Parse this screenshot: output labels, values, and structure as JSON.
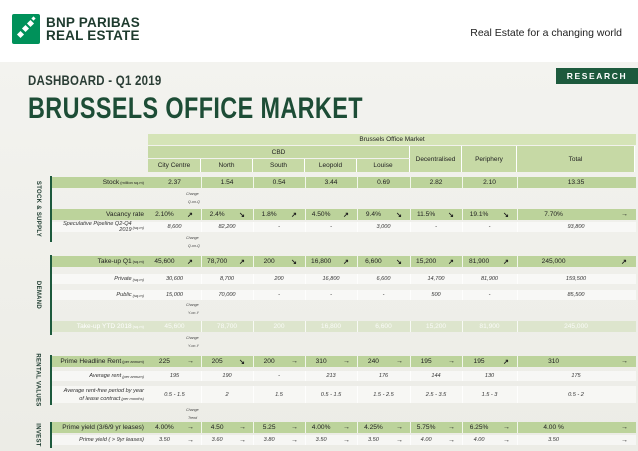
{
  "header": {
    "logo_line1": "BNP PARIBAS",
    "logo_line2": "REAL ESTATE",
    "tagline": "Real Estate for a changing world",
    "logo_icon": "bnp-stars-logo"
  },
  "banner": {
    "research_label": "RESEARCH",
    "subtitle": "DASHBOARD  - Q1 2019",
    "title": "BRUSSELS OFFICE MARKET"
  },
  "table": {
    "title": "Brussels Office Market",
    "cbd_label": "CBD",
    "columns": [
      "City Centre",
      "North",
      "South",
      "Leopold",
      "Louise",
      "Decentralised",
      "Periphery",
      "Total"
    ],
    "change_label": "Change",
    "qoq_label": "Q-on-Q",
    "yoy_label": "Y-on-Y",
    "trend_label": "Trend",
    "sections": {
      "stock": "STOCK & SUPPLY",
      "demand": "DEMAND",
      "rental": "RENTAL VALUES",
      "invest": "INVEST"
    },
    "rows": {
      "stock": {
        "label": "Stock",
        "unit": "(million sq.m)",
        "values": [
          "2.37",
          "1.54",
          "0.54",
          "3.44",
          "0.69",
          "2.82",
          "2.10",
          "13.35"
        ]
      },
      "vacancy": {
        "label": "Vacancy rate",
        "values": [
          "2.10%",
          "2.4%",
          "1.8%",
          "4.50%",
          "9.4%",
          "11.5%",
          "19.1%",
          "7.70%"
        ],
        "arrows": [
          "↗",
          "↘",
          "↗",
          "↗",
          "↘",
          "↘",
          "↘",
          "→"
        ]
      },
      "pipeline": {
        "label": "Speculative Pipeline  Q2-Q4 2019",
        "unit": "(sq.m)",
        "values": [
          "8,600",
          "82,200",
          "-",
          "-",
          "3,000",
          "-",
          "-",
          "93,800"
        ]
      },
      "takeup": {
        "label": "Take-up Q1",
        "unit": "(sq.m)",
        "values": [
          "45,600",
          "78,700",
          "200",
          "16,800",
          "6,600",
          "15,200",
          "81,900",
          "245,000"
        ],
        "arrows": [
          "↗",
          "↗",
          "↘",
          "↗",
          "↘",
          "↗",
          "↗",
          "↗"
        ]
      },
      "private": {
        "label": "Private",
        "unit": "(sq.m)",
        "values": [
          "30,600",
          "8,700",
          "200",
          "16,800",
          "6,600",
          "14,700",
          "81,900",
          "159,500"
        ]
      },
      "public": {
        "label": "Public",
        "unit": "(sq.m)",
        "values": [
          "15,000",
          "70,000",
          "-",
          "-",
          "-",
          "500",
          "-",
          "85,500"
        ]
      },
      "takeup_ytd": {
        "label": "Take-up YTD 2018",
        "unit": "(sq.m)",
        "values": [
          "45,600",
          "78,700",
          "200",
          "16,800",
          "6,600",
          "15,200",
          "81,900",
          "245,000"
        ]
      },
      "prime_rent": {
        "label": "Prime Headline Rent",
        "unit": "(per annum)",
        "values": [
          "225",
          "205",
          "200",
          "310",
          "240",
          "195",
          "195",
          "310"
        ],
        "arrows": [
          "→",
          "↘",
          "→",
          "→",
          "→",
          "→",
          "↗",
          "→"
        ]
      },
      "avg_rent": {
        "label": "Average rent",
        "unit": "(per annum)",
        "values": [
          "195",
          "190",
          "-",
          "213",
          "176",
          "144",
          "130",
          "175"
        ]
      },
      "rent_free": {
        "label1": "Average rent-free period by  year",
        "label2": "of lease contract",
        "unit": "(per months)",
        "values": [
          "0.5 - 1.5",
          "2",
          "1.5",
          "0.5 - 1.5",
          "1.5 - 2.5",
          "2.5 - 3.5",
          "1.5 - 3",
          "0.5 - 2"
        ]
      },
      "prime_yield": {
        "label": "Prime yield (3/6/9 yr leases)",
        "values": [
          "4.00%",
          "4.50",
          "5.25",
          "4.00%",
          "4.25%",
          "5.75%",
          "6.25%",
          "4.00 %"
        ],
        "arrows": [
          "→",
          "→",
          "→",
          "→",
          "→",
          "→",
          "→",
          "→"
        ]
      },
      "prime_yield_9": {
        "label": "Prime  yield  ( > 9yr leases)",
        "values": [
          "3.50",
          "3.60",
          "3.80",
          "3.50",
          "3.50",
          "4.00",
          "4.00",
          "3.50"
        ],
        "arrows": [
          "→",
          "→",
          "→",
          "→",
          "→",
          "→",
          "→",
          "→"
        ]
      }
    }
  }
}
